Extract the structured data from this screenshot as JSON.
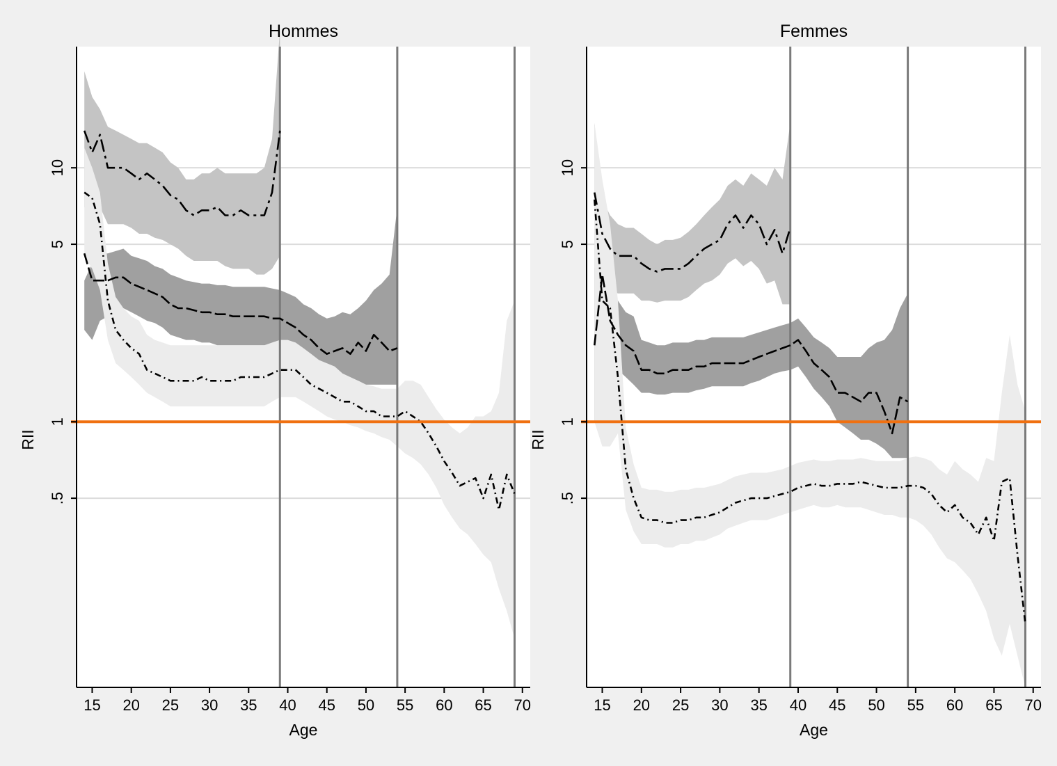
{
  "chart_data": [
    {
      "type": "line",
      "title": "Hommes",
      "xlabel": "Age",
      "ylabel": "RII",
      "xlim": [
        13,
        71
      ],
      "ylim": [
        0.09,
        30
      ],
      "y_scale": "log",
      "x_ticks": [
        15,
        20,
        25,
        30,
        35,
        40,
        45,
        50,
        55,
        60,
        65,
        70
      ],
      "y_ticks": [
        0.5,
        1,
        5,
        10
      ],
      "y_tick_labels": [
        ".5",
        "1",
        "5",
        "10"
      ],
      "grid": "horizontal",
      "reference_line": {
        "y": 1,
        "color": "#f07010"
      },
      "vertical_lines": [
        39,
        54,
        69
      ],
      "series": [
        {
          "style": "long-dash-dot",
          "band_color": "#c4c4c4",
          "x": [
            14,
            15,
            16,
            17,
            18,
            19,
            20,
            21,
            22,
            23,
            24,
            25,
            26,
            27,
            28,
            29,
            30,
            31,
            32,
            33,
            34,
            35,
            36,
            37,
            38,
            39
          ],
          "y": [
            14,
            11.5,
            13.5,
            10,
            10,
            10,
            9.5,
            9,
            9.5,
            9,
            8.5,
            7.8,
            7.5,
            6.8,
            6.5,
            6.8,
            6.8,
            7,
            6.5,
            6.5,
            6.8,
            6.5,
            6.5,
            6.5,
            8,
            14
          ],
          "lower": [
            7,
            6.5,
            7,
            6,
            6,
            6,
            5.8,
            5.5,
            5.5,
            5.3,
            5.2,
            5,
            4.8,
            4.5,
            4.3,
            4.3,
            4.3,
            4.3,
            4.1,
            4,
            4,
            4,
            3.8,
            3.8,
            4,
            4.5
          ],
          "upper": [
            24,
            19,
            17,
            14.5,
            14,
            13.5,
            13,
            12.5,
            12.5,
            12,
            11.5,
            10.5,
            10,
            9,
            9,
            9.5,
            9.5,
            10,
            9.5,
            9.5,
            9.5,
            9.5,
            9.5,
            10,
            13,
            35
          ]
        },
        {
          "style": "long-dash",
          "band_color": "#a0a0a0",
          "x": [
            14,
            15,
            16,
            17,
            18,
            19,
            20,
            21,
            22,
            23,
            24,
            25,
            26,
            27,
            28,
            29,
            30,
            31,
            32,
            33,
            34,
            35,
            36,
            37,
            38,
            39,
            40,
            41,
            42,
            43,
            44,
            45,
            46,
            47,
            48,
            49,
            50,
            51,
            52,
            53,
            54
          ],
          "y": [
            4.6,
            3.6,
            3.6,
            3.6,
            3.7,
            3.7,
            3.5,
            3.4,
            3.3,
            3.2,
            3.1,
            2.9,
            2.8,
            2.8,
            2.75,
            2.7,
            2.7,
            2.65,
            2.65,
            2.6,
            2.6,
            2.6,
            2.6,
            2.6,
            2.55,
            2.55,
            2.45,
            2.35,
            2.2,
            2.1,
            1.95,
            1.85,
            1.9,
            1.95,
            1.85,
            2.05,
            1.9,
            2.2,
            2.05,
            1.9,
            1.95
          ],
          "lower": [
            2.3,
            2.1,
            2.5,
            2.6,
            2.8,
            2.8,
            2.7,
            2.6,
            2.5,
            2.45,
            2.35,
            2.2,
            2.15,
            2.1,
            2.1,
            2.05,
            2.05,
            2,
            2,
            2,
            2,
            2,
            2,
            2,
            2,
            2,
            1.9,
            1.85,
            1.75,
            1.65,
            1.55,
            1.5,
            1.5,
            1.5,
            1.45,
            1.45,
            1.4,
            1.4,
            1.4,
            1.4,
            1.4
          ],
          "upper": [
            3.6,
            4.2,
            4.6,
            4.6,
            4.7,
            4.8,
            4.5,
            4.4,
            4.3,
            4.1,
            4,
            3.8,
            3.7,
            3.6,
            3.55,
            3.5,
            3.5,
            3.45,
            3.45,
            3.4,
            3.4,
            3.4,
            3.4,
            3.4,
            3.35,
            3.3,
            3.2,
            3.1,
            2.9,
            2.8,
            2.65,
            2.55,
            2.6,
            2.7,
            2.65,
            2.8,
            3,
            3.3,
            3.5,
            3.8,
            7
          ]
        },
        {
          "style": "dash-dot",
          "band_color": "#ececec",
          "x": [
            14,
            15,
            16,
            17,
            18,
            19,
            20,
            21,
            22,
            23,
            24,
            25,
            26,
            27,
            28,
            29,
            30,
            31,
            32,
            33,
            34,
            35,
            36,
            37,
            38,
            39,
            40,
            41,
            42,
            43,
            44,
            45,
            46,
            47,
            48,
            49,
            50,
            51,
            52,
            53,
            54,
            55,
            56,
            57,
            58,
            59,
            60,
            61,
            62,
            63,
            64,
            65,
            66,
            67,
            68,
            69
          ],
          "y": [
            8,
            7.6,
            6,
            3,
            2.3,
            2.1,
            1.95,
            1.85,
            1.6,
            1.55,
            1.5,
            1.45,
            1.45,
            1.45,
            1.45,
            1.5,
            1.45,
            1.45,
            1.45,
            1.45,
            1.5,
            1.5,
            1.5,
            1.5,
            1.55,
            1.6,
            1.6,
            1.6,
            1.5,
            1.4,
            1.35,
            1.3,
            1.25,
            1.2,
            1.2,
            1.15,
            1.1,
            1.1,
            1.05,
            1.05,
            1.05,
            1.1,
            1.05,
            1,
            0.9,
            0.8,
            0.7,
            0.63,
            0.56,
            0.58,
            0.6,
            0.5,
            0.62,
            0.45,
            0.62,
            0.52
          ],
          "lower": [
            4.5,
            4,
            3.3,
            2.1,
            1.7,
            1.6,
            1.5,
            1.4,
            1.3,
            1.25,
            1.2,
            1.15,
            1.15,
            1.15,
            1.15,
            1.15,
            1.15,
            1.15,
            1.15,
            1.15,
            1.15,
            1.15,
            1.15,
            1.15,
            1.2,
            1.25,
            1.25,
            1.25,
            1.2,
            1.15,
            1.1,
            1.05,
            1.02,
            1,
            0.97,
            0.95,
            0.92,
            0.9,
            0.87,
            0.85,
            0.8,
            0.75,
            0.72,
            0.68,
            0.62,
            0.55,
            0.47,
            0.42,
            0.38,
            0.36,
            0.33,
            0.3,
            0.28,
            0.22,
            0.18,
            0.14
          ],
          "upper": [
            12,
            10,
            8,
            4.2,
            3.1,
            2.8,
            2.6,
            2.5,
            2.2,
            2.1,
            2.05,
            2,
            2,
            2,
            2,
            2,
            2,
            2,
            2,
            2,
            2,
            2,
            2,
            2,
            2.05,
            2.1,
            2.1,
            2.05,
            1.95,
            1.85,
            1.75,
            1.7,
            1.65,
            1.55,
            1.5,
            1.45,
            1.4,
            1.38,
            1.35,
            1.35,
            1.35,
            1.45,
            1.45,
            1.4,
            1.25,
            1.12,
            1.02,
            0.95,
            0.9,
            0.95,
            1.05,
            1.05,
            1.1,
            1.3,
            2.5,
            3
          ]
        }
      ]
    },
    {
      "type": "line",
      "title": "Femmes",
      "xlabel": "Age",
      "ylabel": "RII",
      "xlim": [
        13,
        71
      ],
      "ylim": [
        0.09,
        30
      ],
      "y_scale": "log",
      "x_ticks": [
        15,
        20,
        25,
        30,
        35,
        40,
        45,
        50,
        55,
        60,
        65,
        70
      ],
      "y_ticks": [
        0.5,
        1,
        5,
        10
      ],
      "y_tick_labels": [
        ".5",
        "1",
        "5",
        "10"
      ],
      "grid": "horizontal",
      "reference_line": {
        "y": 1,
        "color": "#f07010"
      },
      "vertical_lines": [
        39,
        54,
        69
      ],
      "series": [
        {
          "style": "long-dash-dot",
          "band_color": "#c4c4c4",
          "x": [
            14,
            15,
            16,
            17,
            18,
            19,
            20,
            21,
            22,
            23,
            24,
            25,
            26,
            27,
            28,
            29,
            30,
            31,
            32,
            33,
            34,
            35,
            36,
            37,
            38,
            39
          ],
          "y": [
            8,
            5.5,
            4.8,
            4.5,
            4.5,
            4.5,
            4.2,
            4,
            3.9,
            4,
            4,
            4,
            4.2,
            4.5,
            4.8,
            5,
            5.2,
            6,
            6.5,
            5.8,
            6.5,
            6,
            5,
            5.7,
            4.6,
            5.8
          ],
          "lower": [
            4,
            3.5,
            3.3,
            3.2,
            3.2,
            3.2,
            3,
            3,
            2.95,
            3,
            3,
            3,
            3.1,
            3.3,
            3.5,
            3.6,
            3.8,
            4.2,
            4.4,
            4.1,
            4.3,
            4,
            3.5,
            3.6,
            2.9,
            2.9
          ],
          "upper": [
            15,
            7.5,
            6.5,
            6,
            5.8,
            5.8,
            5.5,
            5.2,
            5,
            5.2,
            5.2,
            5.3,
            5.6,
            6,
            6.5,
            7,
            7.5,
            8.5,
            9,
            8.5,
            9.5,
            9,
            8.5,
            10,
            9,
            15
          ]
        },
        {
          "style": "long-dash",
          "band_color": "#a0a0a0",
          "x": [
            14,
            15,
            16,
            17,
            18,
            19,
            20,
            21,
            22,
            23,
            24,
            25,
            26,
            27,
            28,
            29,
            30,
            31,
            32,
            33,
            34,
            35,
            36,
            37,
            38,
            39,
            40,
            41,
            42,
            43,
            44,
            45,
            46,
            47,
            48,
            49,
            50,
            51,
            52,
            53,
            54
          ],
          "y": [
            2,
            3.8,
            2.5,
            2.2,
            2,
            1.9,
            1.6,
            1.6,
            1.55,
            1.55,
            1.6,
            1.6,
            1.6,
            1.65,
            1.65,
            1.7,
            1.7,
            1.7,
            1.7,
            1.7,
            1.75,
            1.8,
            1.85,
            1.9,
            1.95,
            2,
            2.1,
            1.9,
            1.7,
            1.6,
            1.5,
            1.3,
            1.3,
            1.25,
            1.2,
            1.3,
            1.3,
            1.1,
            0.9,
            1.25,
            1.2
          ],
          "lower": [
            1,
            2.4,
            1.7,
            1.6,
            1.5,
            1.4,
            1.3,
            1.3,
            1.28,
            1.28,
            1.3,
            1.3,
            1.3,
            1.33,
            1.35,
            1.38,
            1.38,
            1.38,
            1.38,
            1.38,
            1.42,
            1.45,
            1.5,
            1.55,
            1.58,
            1.6,
            1.65,
            1.5,
            1.35,
            1.25,
            1.15,
            1,
            0.95,
            0.9,
            0.85,
            0.85,
            0.82,
            0.78,
            0.72,
            0.72,
            0.72
          ],
          "upper": [
            4,
            5.5,
            3.5,
            3,
            2.7,
            2.6,
            2.1,
            2.05,
            2,
            2,
            2.05,
            2.05,
            2.05,
            2.1,
            2.1,
            2.15,
            2.15,
            2.15,
            2.15,
            2.15,
            2.2,
            2.25,
            2.3,
            2.35,
            2.4,
            2.45,
            2.55,
            2.35,
            2.15,
            2.05,
            1.95,
            1.8,
            1.8,
            1.8,
            1.8,
            1.95,
            2.05,
            2.1,
            2.3,
            2.8,
            3.2
          ]
        },
        {
          "style": "dash-dot",
          "band_color": "#ececec",
          "x": [
            14,
            15,
            16,
            17,
            18,
            19,
            20,
            21,
            22,
            23,
            24,
            25,
            26,
            27,
            28,
            29,
            30,
            31,
            32,
            33,
            34,
            35,
            36,
            37,
            38,
            39,
            40,
            41,
            42,
            43,
            44,
            45,
            46,
            47,
            48,
            49,
            50,
            51,
            52,
            53,
            54,
            55,
            56,
            57,
            58,
            59,
            60,
            61,
            62,
            63,
            64,
            65,
            66,
            67,
            68,
            69
          ],
          "y": [
            7.5,
            3,
            2.8,
            1.5,
            0.65,
            0.5,
            0.42,
            0.41,
            0.41,
            0.4,
            0.4,
            0.41,
            0.41,
            0.42,
            0.42,
            0.43,
            0.44,
            0.46,
            0.48,
            0.49,
            0.5,
            0.5,
            0.5,
            0.51,
            0.52,
            0.53,
            0.55,
            0.56,
            0.57,
            0.56,
            0.56,
            0.57,
            0.57,
            0.57,
            0.58,
            0.57,
            0.56,
            0.55,
            0.55,
            0.55,
            0.56,
            0.56,
            0.55,
            0.52,
            0.47,
            0.44,
            0.47,
            0.42,
            0.4,
            0.36,
            0.42,
            0.34,
            0.58,
            0.6,
            0.3,
            0.16
          ],
          "lower": [
            1,
            0.8,
            0.8,
            0.9,
            0.45,
            0.37,
            0.33,
            0.33,
            0.33,
            0.32,
            0.32,
            0.33,
            0.33,
            0.34,
            0.34,
            0.35,
            0.36,
            0.38,
            0.39,
            0.4,
            0.41,
            0.41,
            0.41,
            0.42,
            0.43,
            0.44,
            0.45,
            0.46,
            0.47,
            0.46,
            0.46,
            0.47,
            0.46,
            0.46,
            0.46,
            0.45,
            0.44,
            0.43,
            0.43,
            0.42,
            0.42,
            0.41,
            0.39,
            0.36,
            0.32,
            0.29,
            0.28,
            0.26,
            0.24,
            0.21,
            0.18,
            0.14,
            0.12,
            0.16,
            0.12,
            0.09
          ],
          "upper": [
            15,
            9,
            6,
            3,
            0.95,
            0.68,
            0.55,
            0.54,
            0.54,
            0.53,
            0.53,
            0.54,
            0.54,
            0.55,
            0.55,
            0.56,
            0.57,
            0.59,
            0.61,
            0.62,
            0.63,
            0.63,
            0.63,
            0.64,
            0.65,
            0.67,
            0.69,
            0.7,
            0.71,
            0.7,
            0.7,
            0.71,
            0.71,
            0.71,
            0.72,
            0.71,
            0.7,
            0.7,
            0.7,
            0.7,
            0.72,
            0.73,
            0.72,
            0.7,
            0.65,
            0.62,
            0.7,
            0.65,
            0.62,
            0.58,
            0.72,
            0.7,
            1.3,
            2.2,
            1.4,
            1.1
          ]
        }
      ]
    }
  ]
}
